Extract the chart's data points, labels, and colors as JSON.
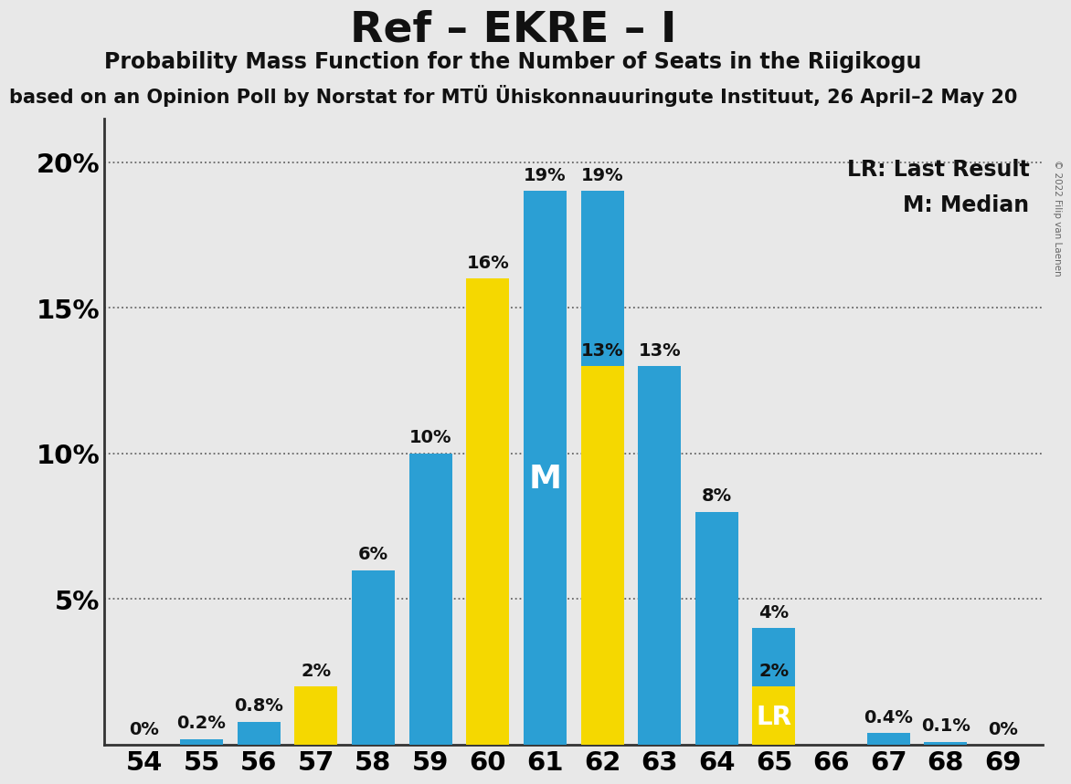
{
  "title": "Ref – EKRE – I",
  "subtitle": "Probability Mass Function for the Number of Seats in the Riigikogu",
  "subtitle2": "based on an Opinion Poll by Norstat for MTÜ Ühiskonnauuringute Instituut, 26 April–2 May 20",
  "copyright": "© 2022 Filip van Laenen",
  "seats": [
    54,
    55,
    56,
    57,
    58,
    59,
    60,
    61,
    62,
    63,
    64,
    65,
    66,
    67,
    68,
    69
  ],
  "blue_values": [
    0.0,
    0.2,
    0.8,
    0.0,
    6.0,
    10.0,
    0.0,
    19.0,
    19.0,
    13.0,
    8.0,
    4.0,
    0.0,
    0.4,
    0.1,
    0.0
  ],
  "yellow_values": [
    0.0,
    0.0,
    0.0,
    2.0,
    0.0,
    0.0,
    16.0,
    0.0,
    13.0,
    0.0,
    0.0,
    2.0,
    0.0,
    0.0,
    0.0,
    0.0
  ],
  "blue_color": "#2b9fd4",
  "yellow_color": "#f5d800",
  "median_seat": 61,
  "lr_seat": 65,
  "background_color": "#e8e8e8",
  "ylim_max": 21.5,
  "yticks": [
    5,
    10,
    15,
    20
  ],
  "bar_width": 0.75,
  "grid_color": "#666666",
  "text_color": "#111111",
  "title_fontsize": 34,
  "subtitle_fontsize": 17,
  "subtitle2_fontsize": 15,
  "tick_fontsize": 21,
  "bar_label_fontsize": 14,
  "legend_fontsize": 17,
  "bar_labels_blue": [
    "0%",
    "0.2%",
    "0.8%",
    "",
    "6%",
    "10%",
    "",
    "19%",
    "19%",
    "13%",
    "8%",
    "4%",
    "",
    "0.4%",
    "0.1%",
    "0%"
  ],
  "bar_labels_yellow": [
    "",
    "",
    "",
    "2%",
    "",
    "",
    "16%",
    "",
    "13%",
    "",
    "",
    "2%",
    "",
    "",
    "",
    ""
  ]
}
